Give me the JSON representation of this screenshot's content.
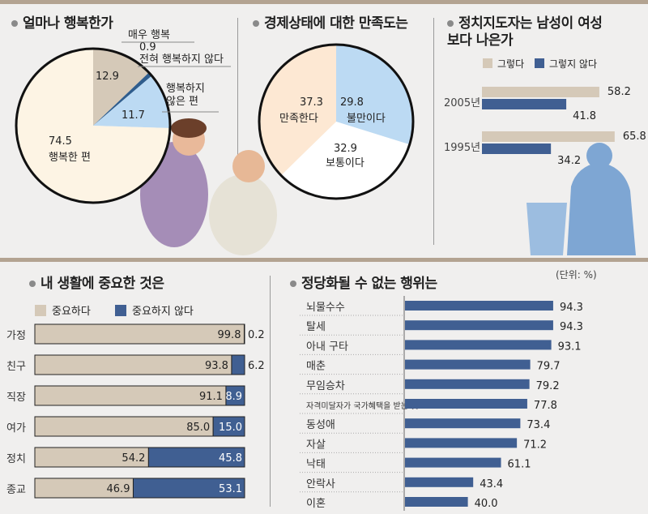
{
  "colors": {
    "beige": "#d5c9b8",
    "navy": "#405f92",
    "lightblue": "#bcdaf3",
    "cream": "#fdf4e4",
    "peach": "#fde8d3",
    "white": "#ffffff"
  },
  "chart_data": [
    {
      "type": "pie",
      "title": "얼마나 행복한가",
      "slices": [
        {
          "label": "매우 행복",
          "value": 12.9,
          "color": "#d5c9b8"
        },
        {
          "label": "전혀 행복하지 않다",
          "value": 0.9,
          "color": "#2f5d8d"
        },
        {
          "label": "행복하지 않은 편",
          "value": 11.7,
          "color": "#bcdaf3"
        },
        {
          "label": "행복한 편",
          "value": 74.5,
          "color": "#fdf4e4"
        }
      ]
    },
    {
      "type": "pie",
      "title": "경제상태에 대한 만족도는",
      "slices": [
        {
          "label": "불만이다",
          "value": 29.8,
          "color": "#bcdaf3"
        },
        {
          "label": "보통이다",
          "value": 32.9,
          "color": "#ffffff"
        },
        {
          "label": "만족한다",
          "value": 37.3,
          "color": "#fde8d3"
        }
      ]
    },
    {
      "type": "bar",
      "title": "정치지도자는 남성이 여성보다 나은가",
      "categories": [
        "2005년",
        "1995년"
      ],
      "series": [
        {
          "name": "그렇다",
          "values": [
            58.2,
            65.8
          ],
          "color": "#d5c9b8"
        },
        {
          "name": "그렇지 않다",
          "values": [
            41.8,
            34.2
          ],
          "color": "#405f92"
        }
      ]
    },
    {
      "type": "bar",
      "stacked": true,
      "title": "내 생활에 중요한 것은",
      "categories": [
        "가정",
        "친구",
        "직장",
        "여가",
        "정치",
        "종교"
      ],
      "series": [
        {
          "name": "중요하다",
          "values": [
            99.8,
            93.8,
            91.1,
            85.0,
            54.2,
            46.9
          ],
          "color": "#d5c9b8"
        },
        {
          "name": "중요하지 않다",
          "values": [
            0.2,
            6.2,
            8.9,
            15.0,
            45.8,
            53.1
          ],
          "color": "#405f92"
        }
      ]
    },
    {
      "type": "bar",
      "title": "정당화될 수 없는 행위는",
      "unit": "(단위: %)",
      "categories": [
        "뇌물수수",
        "탈세",
        "아내 구타",
        "매춘",
        "무임승차",
        "자격미달자가 국가혜택을 받는 것",
        "동성애",
        "자살",
        "낙태",
        "안락사",
        "이혼"
      ],
      "values": [
        94.3,
        94.3,
        93.1,
        79.7,
        79.2,
        77.8,
        73.4,
        71.2,
        61.1,
        43.4,
        40.0
      ],
      "color": "#405f92"
    }
  ]
}
